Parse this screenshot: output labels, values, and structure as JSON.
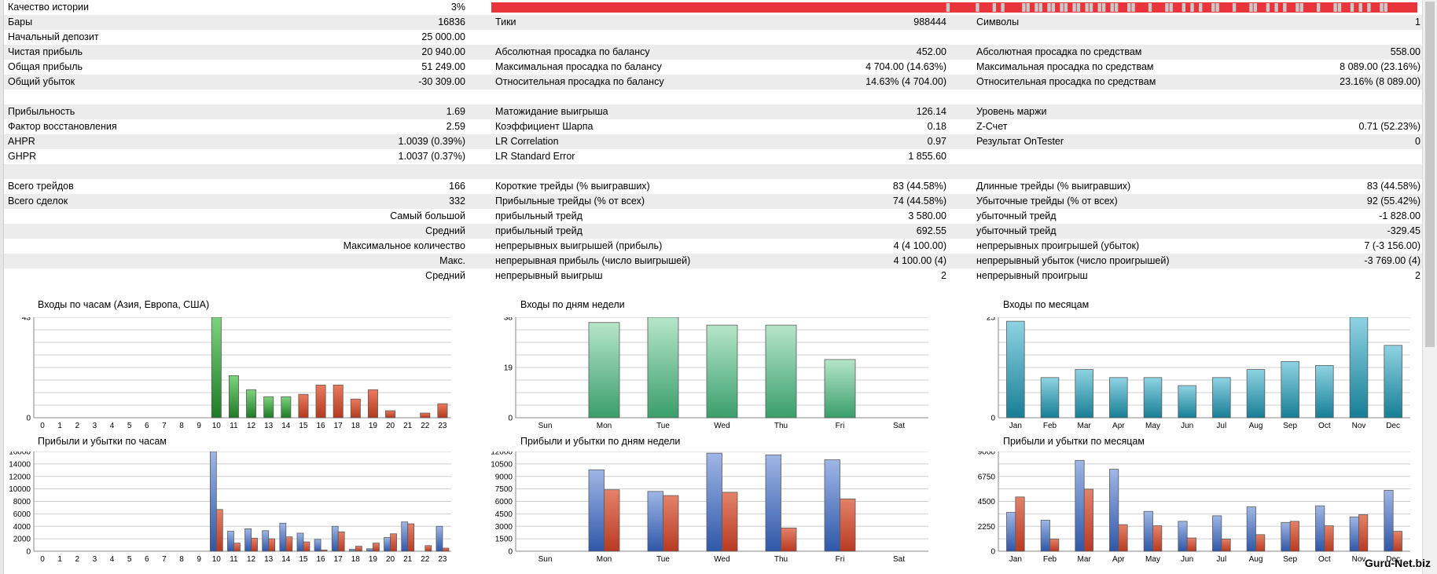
{
  "history_quality": {
    "label": "Качество истории",
    "value": "3%"
  },
  "rows": [
    {
      "c1": "Бары",
      "v1": "16836",
      "c2": "Тики",
      "v2": "988444",
      "c3": "Символы",
      "v3": "1"
    },
    {
      "c1": "Начальный депозит",
      "v1": "25 000.00",
      "c2": "",
      "v2": "",
      "c3": "",
      "v3": ""
    },
    {
      "c1": "Чистая прибыль",
      "v1": "20 940.00",
      "c2": "Абсолютная просадка по балансу",
      "v2": "452.00",
      "c3": "Абсолютная просадка по средствам",
      "v3": "558.00"
    },
    {
      "c1": "Общая прибыль",
      "v1": "51 249.00",
      "c2": "Максимальная просадка по балансу",
      "v2": "4 704.00 (14.63%)",
      "c3": "Максимальная просадка по средствам",
      "v3": "8 089.00 (23.16%)"
    },
    {
      "c1": "Общий убыток",
      "v1": "-30 309.00",
      "c2": "Относительная просадка по балансу",
      "v2": "14.63% (4 704.00)",
      "c3": "Относительная просадка по средствам",
      "v3": "23.16% (8 089.00)"
    },
    {
      "c1": "",
      "v1": "",
      "c2": "",
      "v2": "",
      "c3": "",
      "v3": ""
    },
    {
      "c1": "Прибыльность",
      "v1": "1.69",
      "c2": "Матожидание выигрыша",
      "v2": "126.14",
      "c3": "Уровень маржи",
      "v3": ""
    },
    {
      "c1": "Фактор восстановления",
      "v1": "2.59",
      "c2": "Коэффициент Шарпа",
      "v2": "0.18",
      "c3": "Z-Счет",
      "v3": "0.71 (52.23%)"
    },
    {
      "c1": "AHPR",
      "v1": "1.0039 (0.39%)",
      "c2": "LR Correlation",
      "v2": "0.97",
      "c3": "Результат OnTester",
      "v3": "0"
    },
    {
      "c1": "GHPR",
      "v1": "1.0037 (0.37%)",
      "c2": "LR Standard Error",
      "v2": "1 855.60",
      "c3": "",
      "v3": ""
    },
    {
      "c1": "",
      "v1": "",
      "c2": "",
      "v2": "",
      "c3": "",
      "v3": ""
    },
    {
      "c1": "Всего трейдов",
      "v1": "166",
      "c2": "Короткие трейды (% выигравших)",
      "v2": "83 (44.58%)",
      "c3": "Длинные трейды (% выигравших)",
      "v3": "83 (44.58%)"
    },
    {
      "c1": "Всего сделок",
      "v1": "332",
      "c2": "Прибыльные трейды (% от всех)",
      "v2": "74 (44.58%)",
      "c3": "Убыточные трейды (% от всех)",
      "v3": "92 (55.42%)"
    },
    {
      "r1": "Самый большой",
      "c2": "прибыльный трейд",
      "v2": "3 580.00",
      "c3": "убыточный трейд",
      "v3": "-1 828.00"
    },
    {
      "r1": "Средний",
      "c2": "прибыльный трейд",
      "v2": "692.55",
      "c3": "убыточный трейд",
      "v3": "-329.45"
    },
    {
      "r1": "Максимальное количество",
      "c2": "непрерывных выигрышей (прибыль)",
      "v2": "4 (4 100.00)",
      "c3": "непрерывных проигрышей (убыток)",
      "v3": "7 (-3 156.00)"
    },
    {
      "r1": "Макс.",
      "c2": "непрерывная прибыль (число выигрышей)",
      "v2": "4 100.00 (4)",
      "c3": "непрерывный убыток (число проигрышей)",
      "v3": "-3 769.00 (4)"
    },
    {
      "r1": "Средний",
      "c2": "непрерывный выигрыш",
      "v2": "2",
      "c3": "непрерывный проигрыш",
      "v3": "2"
    }
  ],
  "colors": {
    "alt_row": "#ececec",
    "quality_red": "#e8343a",
    "quality_gray": "#c9c9c9",
    "green": "#1e7a24",
    "red_bar": "#b23a1e",
    "teal": "#177e95",
    "mint": "#3a9e6c",
    "blue": "#2f57a8",
    "loss_red": "#b83a22"
  },
  "watermark": "Guru-Net.biz",
  "chart_data": [
    {
      "type": "bar",
      "title": "Входы по часам (Азия, Европа, США)",
      "categories": [
        "0",
        "1",
        "2",
        "3",
        "4",
        "5",
        "6",
        "7",
        "8",
        "9",
        "10",
        "11",
        "12",
        "13",
        "14",
        "15",
        "16",
        "17",
        "18",
        "19",
        "20",
        "21",
        "22",
        "23"
      ],
      "values": [
        0,
        0,
        0,
        0,
        0,
        0,
        0,
        0,
        0,
        0,
        43,
        18,
        12,
        9,
        9,
        10,
        14,
        14,
        8,
        12,
        3,
        0,
        2,
        6
      ],
      "ylim": [
        0,
        43
      ],
      "yticks": [
        "0",
        "43"
      ],
      "bar_colors": [
        "g",
        "g",
        "g",
        "g",
        "g",
        "g",
        "g",
        "g",
        "g",
        "g",
        "g",
        "g",
        "g",
        "g",
        "g",
        "r",
        "r",
        "r",
        "r",
        "r",
        "r",
        "r",
        "r",
        "r"
      ]
    },
    {
      "type": "bar",
      "title": "Входы по дням недели",
      "categories": [
        "Sun",
        "Mon",
        "Tue",
        "Wed",
        "Thu",
        "Fri",
        "Sat"
      ],
      "values": [
        0,
        36,
        38,
        35,
        35,
        22,
        0
      ],
      "ylim": [
        0,
        38
      ],
      "yticks": [
        "0",
        "19",
        "38"
      ]
    },
    {
      "type": "bar",
      "title": "Входы по месяцам",
      "categories": [
        "Jan",
        "Feb",
        "Mar",
        "Apr",
        "May",
        "Jun",
        "Jul",
        "Aug",
        "Sep",
        "Oct",
        "Nov",
        "Dec"
      ],
      "values": [
        24,
        10,
        12,
        10,
        10,
        8,
        10,
        12,
        14,
        13,
        25,
        18
      ],
      "ylim": [
        0,
        25
      ],
      "yticks": [
        "0",
        "25"
      ]
    },
    {
      "type": "bar",
      "title": "Прибыли и убытки по часам",
      "categories": [
        "0",
        "1",
        "2",
        "3",
        "4",
        "5",
        "6",
        "7",
        "8",
        "9",
        "10",
        "11",
        "12",
        "13",
        "14",
        "15",
        "16",
        "17",
        "18",
        "19",
        "20",
        "21",
        "22",
        "23"
      ],
      "series": [
        {
          "values": [
            0,
            0,
            0,
            0,
            0,
            0,
            0,
            0,
            0,
            0,
            16000,
            3200,
            3600,
            3300,
            4500,
            2900,
            1900,
            4000,
            300,
            400,
            2200,
            4700,
            0,
            4000
          ]
        },
        {
          "values": [
            0,
            0,
            0,
            0,
            0,
            0,
            0,
            0,
            0,
            0,
            6700,
            1300,
            2100,
            2000,
            2300,
            1500,
            200,
            3100,
            800,
            1300,
            2800,
            4400,
            900,
            500
          ]
        }
      ],
      "ylim": [
        0,
        16000
      ],
      "yticks": [
        "0",
        "2000",
        "4000",
        "6000",
        "8000",
        "10000",
        "12000",
        "14000",
        "16000"
      ]
    },
    {
      "type": "bar",
      "title": "Прибыли и убытки по дням недели",
      "categories": [
        "Sun",
        "Mon",
        "Tue",
        "Wed",
        "Thu",
        "Fri",
        "Sat"
      ],
      "series": [
        {
          "values": [
            0,
            9800,
            7200,
            11800,
            11600,
            11000,
            0
          ]
        },
        {
          "values": [
            0,
            7400,
            6700,
            7100,
            2800,
            6300,
            0
          ]
        }
      ],
      "ylim": [
        0,
        12000
      ],
      "yticks": [
        "0",
        "1500",
        "3000",
        "4500",
        "6000",
        "7500",
        "9000",
        "10500",
        "12000"
      ]
    },
    {
      "type": "bar",
      "title": "Прибыли и убытки по месяцам",
      "categories": [
        "Jan",
        "Feb",
        "Mar",
        "Apr",
        "May",
        "Jun",
        "Jul",
        "Aug",
        "Sep",
        "Oct",
        "Nov",
        "Dec"
      ],
      "series": [
        {
          "values": [
            3500,
            2800,
            8200,
            7400,
            3600,
            2700,
            3200,
            4000,
            2600,
            4100,
            3100,
            5500
          ]
        },
        {
          "values": [
            4900,
            1100,
            5600,
            2400,
            2300,
            1200,
            1100,
            1500,
            2700,
            2300,
            3300,
            1800
          ]
        }
      ],
      "ylim": [
        0,
        9000
      ],
      "yticks": [
        "0",
        "2250",
        "4500",
        "6750",
        "9000"
      ]
    }
  ]
}
